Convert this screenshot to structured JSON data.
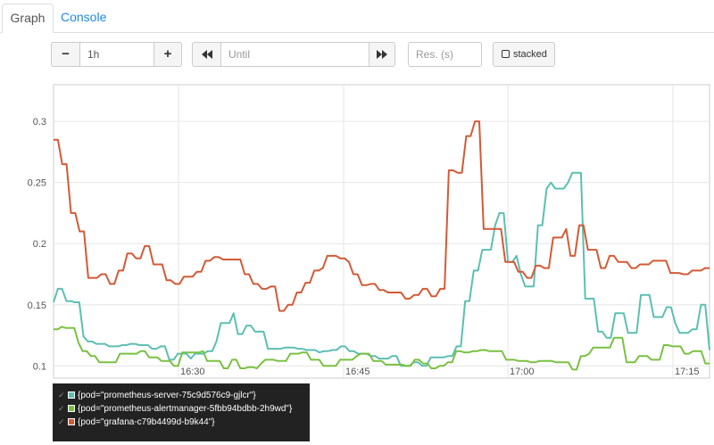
{
  "tabs": [
    {
      "label": "Graph",
      "active": true
    },
    {
      "label": "Console",
      "active": false
    }
  ],
  "controls": {
    "range_minus": "−",
    "range_value": "1h",
    "range_plus": "+",
    "back_icon": "rewind-icon",
    "until_placeholder": "Until",
    "forward_icon": "fast-forward-icon",
    "resolution_placeholder": "Res. (s)",
    "stacked_label": "stacked"
  },
  "colors": {
    "series_1": "#5cbfb2",
    "series_2": "#7ac142",
    "series_3": "#d35a36",
    "legend_bg": "#222222"
  },
  "chart_data": {
    "type": "line",
    "x_tick_labels": [
      "16:30",
      "16:45",
      "17:00",
      "17:15"
    ],
    "y_tick_labels": [
      "0.1",
      "0.15",
      "0.2",
      "0.25",
      "0.3"
    ],
    "ylim": [
      0.09,
      0.33
    ],
    "grid": true,
    "legend_position": "bottom-left",
    "series": [
      {
        "name": "{pod=\"prometheus-server-75c9d576c9-gjlcr\"}",
        "color": "#5cbfb2",
        "values": [
          0.152,
          0.163,
          0.163,
          0.153,
          0.153,
          0.152,
          0.152,
          0.124,
          0.12,
          0.12,
          0.118,
          0.118,
          0.118,
          0.116,
          0.116,
          0.116,
          0.117,
          0.117,
          0.118,
          0.118,
          0.117,
          0.117,
          0.117,
          0.114,
          0.114,
          0.116,
          0.116,
          0.105,
          0.105,
          0.11,
          0.11,
          0.11,
          0.106,
          0.11,
          0.11,
          0.11,
          0.112,
          0.112,
          0.12,
          0.135,
          0.135,
          0.135,
          0.143,
          0.126,
          0.126,
          0.133,
          0.133,
          0.128,
          0.128,
          0.128,
          0.114,
          0.114,
          0.114,
          0.114,
          0.115,
          0.115,
          0.115,
          0.114,
          0.114,
          0.113,
          0.113,
          0.113,
          0.111,
          0.112,
          0.112,
          0.113,
          0.113,
          0.116,
          0.116,
          0.112,
          0.112,
          0.11,
          0.11,
          0.11,
          0.108,
          0.108,
          0.106,
          0.106,
          0.106,
          0.108,
          0.108,
          0.1,
          0.1,
          0.1,
          0.103,
          0.103,
          0.1,
          0.1,
          0.107,
          0.107,
          0.107,
          0.107,
          0.108,
          0.108,
          0.116,
          0.116,
          0.153,
          0.153,
          0.178,
          0.178,
          0.195,
          0.195,
          0.195,
          0.215,
          0.225,
          0.225,
          0.185,
          0.185,
          0.19,
          0.175,
          0.165,
          0.165,
          0.165,
          0.215,
          0.215,
          0.245,
          0.25,
          0.245,
          0.245,
          0.245,
          0.25,
          0.258,
          0.258,
          0.258,
          0.155,
          0.155,
          0.155,
          0.128,
          0.128,
          0.123,
          0.123,
          0.143,
          0.143,
          0.143,
          0.127,
          0.127,
          0.127,
          0.158,
          0.158,
          0.158,
          0.14,
          0.14,
          0.14,
          0.148,
          0.148,
          0.135,
          0.127,
          0.127,
          0.127,
          0.13,
          0.13,
          0.15,
          0.15,
          0.113
        ]
      },
      {
        "name": "{pod=\"prometheus-alertmanager-5fbb94bdbb-2h9wd\"}",
        "color": "#7ac142",
        "values": [
          0.13,
          0.13,
          0.132,
          0.131,
          0.131,
          0.131,
          0.119,
          0.112,
          0.112,
          0.108,
          0.108,
          0.103,
          0.103,
          0.103,
          0.103,
          0.103,
          0.11,
          0.11,
          0.11,
          0.11,
          0.11,
          0.112,
          0.112,
          0.107,
          0.107,
          0.107,
          0.104,
          0.104,
          0.104,
          0.1,
          0.1,
          0.111,
          0.111,
          0.111,
          0.111,
          0.111,
          0.112,
          0.104,
          0.104,
          0.104,
          0.104,
          0.098,
          0.098,
          0.105,
          0.105,
          0.098,
          0.098,
          0.099,
          0.099,
          0.098,
          0.102,
          0.105,
          0.105,
          0.105,
          0.104,
          0.104,
          0.104,
          0.11,
          0.11,
          0.11,
          0.111,
          0.111,
          0.105,
          0.105,
          0.105,
          0.1,
          0.1,
          0.1,
          0.1,
          0.105,
          0.105,
          0.105,
          0.105,
          0.108,
          0.11,
          0.11,
          0.11,
          0.104,
          0.104,
          0.104,
          0.101,
          0.101,
          0.101,
          0.101,
          0.101,
          0.1,
          0.1,
          0.105,
          0.105,
          0.102,
          0.102,
          0.098,
          0.098,
          0.1,
          0.1,
          0.103,
          0.103,
          0.112,
          0.112,
          0.111,
          0.111,
          0.112,
          0.112,
          0.113,
          0.113,
          0.112,
          0.112,
          0.112,
          0.112,
          0.105,
          0.105,
          0.105,
          0.104,
          0.104,
          0.104,
          0.103,
          0.103,
          0.104,
          0.104,
          0.104,
          0.104,
          0.103,
          0.103,
          0.103,
          0.103,
          0.097,
          0.097,
          0.108,
          0.108,
          0.11,
          0.115,
          0.115,
          0.115,
          0.115,
          0.115,
          0.123,
          0.123,
          0.123,
          0.103,
          0.103,
          0.103,
          0.108,
          0.108,
          0.108,
          0.105,
          0.105,
          0.105,
          0.117,
          0.117,
          0.116,
          0.116,
          0.116,
          0.11,
          0.11,
          0.112,
          0.112,
          0.112,
          0.102,
          0.102
        ]
      },
      {
        "name": "{pod=\"grafana-c79b4499d-b9k44\"}",
        "color": "#d35a36",
        "values": [
          0.285,
          0.285,
          0.265,
          0.265,
          0.225,
          0.225,
          0.21,
          0.21,
          0.172,
          0.172,
          0.172,
          0.175,
          0.175,
          0.167,
          0.167,
          0.178,
          0.178,
          0.192,
          0.192,
          0.188,
          0.188,
          0.198,
          0.198,
          0.183,
          0.183,
          0.183,
          0.17,
          0.17,
          0.167,
          0.167,
          0.173,
          0.173,
          0.173,
          0.177,
          0.177,
          0.186,
          0.186,
          0.189,
          0.189,
          0.187,
          0.187,
          0.187,
          0.187,
          0.187,
          0.175,
          0.175,
          0.167,
          0.167,
          0.163,
          0.163,
          0.165,
          0.165,
          0.145,
          0.145,
          0.15,
          0.15,
          0.16,
          0.16,
          0.168,
          0.168,
          0.178,
          0.178,
          0.18,
          0.19,
          0.19,
          0.19,
          0.188,
          0.188,
          0.185,
          0.175,
          0.175,
          0.166,
          0.166,
          0.167,
          0.167,
          0.162,
          0.162,
          0.16,
          0.16,
          0.16,
          0.16,
          0.155,
          0.155,
          0.158,
          0.158,
          0.163,
          0.163,
          0.157,
          0.157,
          0.163,
          0.163,
          0.26,
          0.26,
          0.258,
          0.258,
          0.288,
          0.288,
          0.3,
          0.3,
          0.212,
          0.212,
          0.212,
          0.212,
          0.212,
          0.185,
          0.185,
          0.185,
          0.177,
          0.177,
          0.172,
          0.172,
          0.182,
          0.182,
          0.18,
          0.18,
          0.205,
          0.205,
          0.205,
          0.212,
          0.19,
          0.19,
          0.215,
          0.215,
          0.195,
          0.195,
          0.195,
          0.18,
          0.18,
          0.19,
          0.19,
          0.185,
          0.185,
          0.185,
          0.18,
          0.18,
          0.183,
          0.183,
          0.183,
          0.186,
          0.186,
          0.186,
          0.186,
          0.176,
          0.176,
          0.176,
          0.175,
          0.175,
          0.178,
          0.178,
          0.178,
          0.18,
          0.18
        ]
      }
    ]
  }
}
